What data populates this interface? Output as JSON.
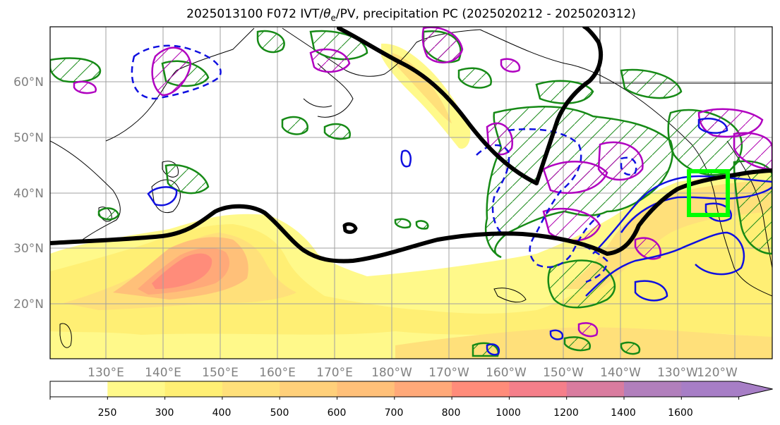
{
  "title": {
    "prefix": "2025013100 F072 IVT/",
    "theta": "θ",
    "sub": "e",
    "suffix": "/PV, precipitation PC (2025020212 - 2025020312)"
  },
  "map": {
    "lon_labels": [
      "130°E",
      "140°E",
      "150°E",
      "160°E",
      "170°E",
      "180°W",
      "170°W",
      "160°W",
      "150°W",
      "140°W",
      "130°W",
      "120°W"
    ],
    "lat_labels": [
      "60°N",
      "50°N",
      "40°N",
      "30°N",
      "20°N"
    ],
    "region_box_color": "#00ff00"
  },
  "colorbar": {
    "levels": [
      "250",
      "300",
      "400",
      "500",
      "600",
      "700",
      "800",
      "1000",
      "1200",
      "1400",
      "1600"
    ],
    "colors": [
      "#ffffff",
      "#fff98a",
      "#ffef74",
      "#ffe07a",
      "#ffd07a",
      "#ffc079",
      "#ffa979",
      "#ff8c7a",
      "#f57f8a",
      "#d97c9f",
      "#b17fbc",
      "#a77ec6"
    ]
  }
}
